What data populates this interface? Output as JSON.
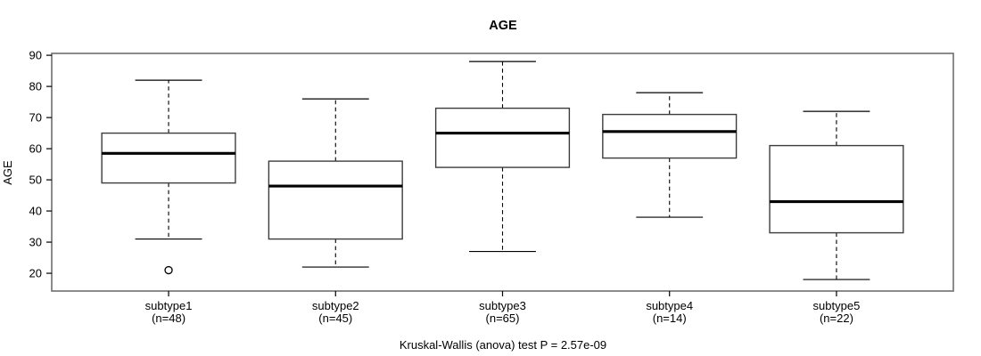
{
  "chart_data": {
    "type": "box",
    "title": "AGE",
    "ylabel": "AGE",
    "xlabel": "",
    "footnote": "Kruskal-Wallis (anova) test P = 2.57e-09",
    "yticks": [
      20,
      30,
      40,
      50,
      60,
      70,
      80,
      90
    ],
    "ylim": [
      14.3,
      90.6
    ],
    "grid": false,
    "legend": "none",
    "groups": [
      {
        "label": "subtype1",
        "sublabel": "(n=48)",
        "n": 48,
        "whisker_low": 31,
        "q1": 49,
        "median": 58.5,
        "q3": 65,
        "whisker_high": 82,
        "outliers": [
          21
        ]
      },
      {
        "label": "subtype2",
        "sublabel": "(n=45)",
        "n": 45,
        "whisker_low": 22,
        "q1": 31,
        "median": 48,
        "q3": 56,
        "whisker_high": 76,
        "outliers": []
      },
      {
        "label": "subtype3",
        "sublabel": "(n=65)",
        "n": 65,
        "whisker_low": 27,
        "q1": 54,
        "median": 65,
        "q3": 73,
        "whisker_high": 88,
        "outliers": []
      },
      {
        "label": "subtype4",
        "sublabel": "(n=14)",
        "n": 14,
        "whisker_low": 38,
        "q1": 57,
        "median": 65.5,
        "q3": 71,
        "whisker_high": 78,
        "outliers": []
      },
      {
        "label": "subtype5",
        "sublabel": "(n=22)",
        "n": 22,
        "whisker_low": 18,
        "q1": 33,
        "median": 43,
        "q3": 61,
        "whisker_high": 72,
        "outliers": []
      }
    ],
    "colors": {
      "box_fill": "#ffffff",
      "line": "#000000",
      "frame": "#6e6e6e"
    }
  }
}
